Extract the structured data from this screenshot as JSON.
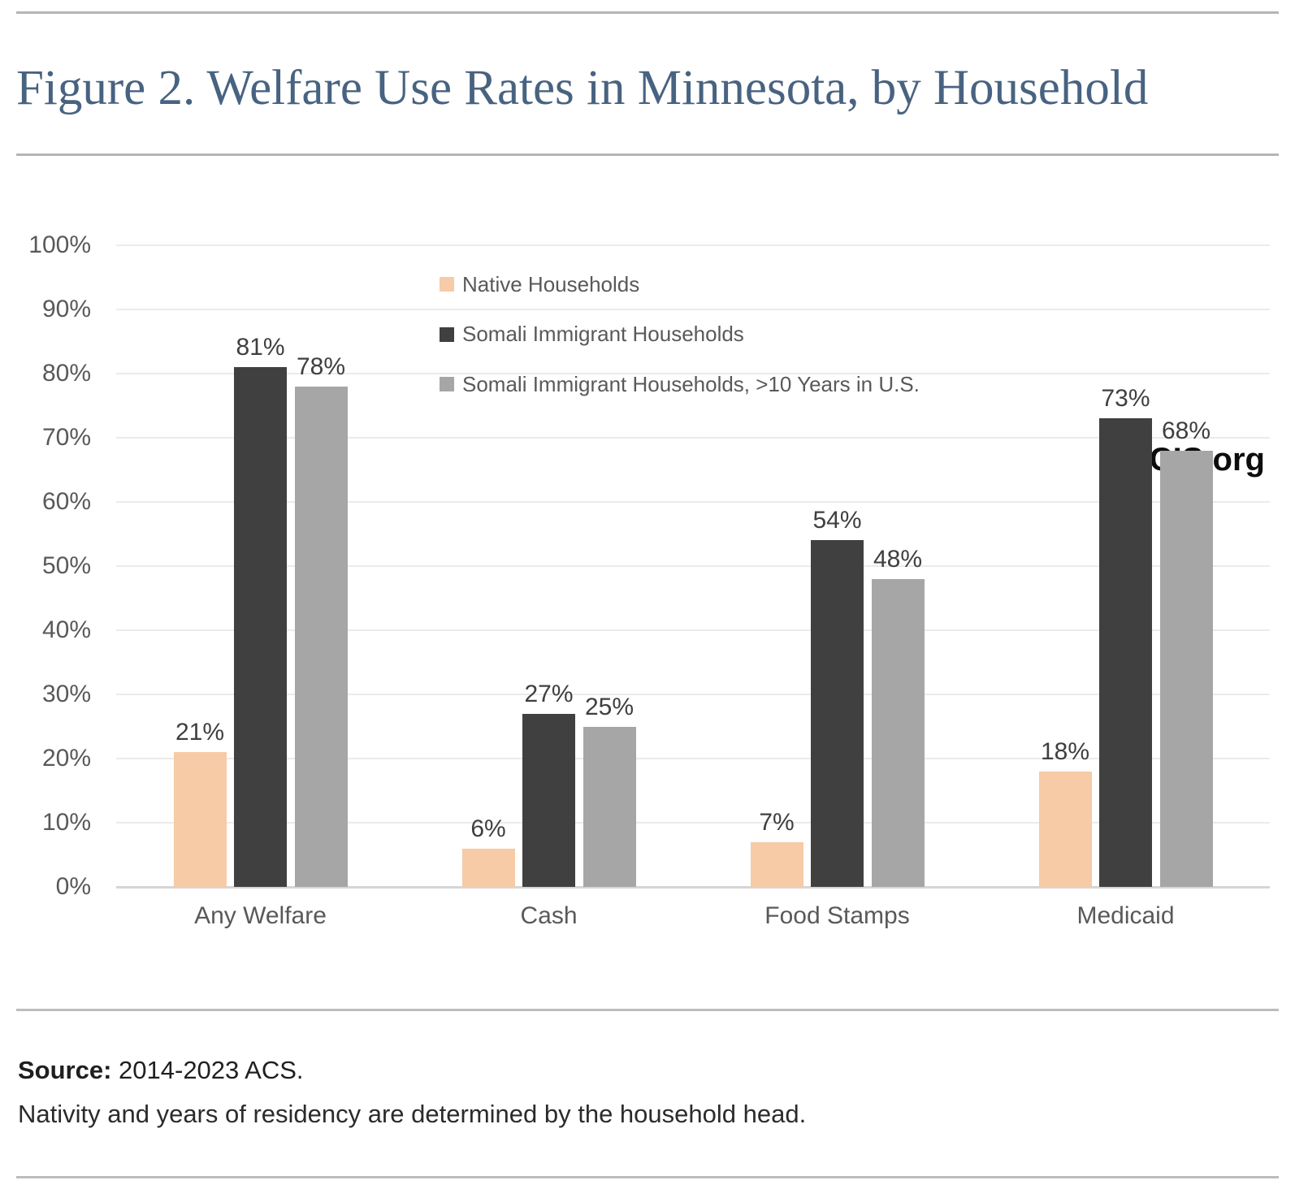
{
  "header": {
    "title": "Figure 2. Welfare Use Rates in Minnesota, by Household"
  },
  "brand": "CIS.org",
  "chart_data": {
    "type": "bar",
    "title": "Figure 2. Welfare Use Rates in Minnesota, by Household",
    "categories": [
      "Any Welfare",
      "Cash",
      "Food Stamps",
      "Medicaid"
    ],
    "series": [
      {
        "name": "Native Households",
        "color": "#f6cba6",
        "values": [
          21,
          6,
          7,
          18
        ]
      },
      {
        "name": "Somali Immigrant Households",
        "color": "#404040",
        "values": [
          81,
          27,
          54,
          73
        ]
      },
      {
        "name": "Somali Immigrant Households, >10 Years in U.S.",
        "color": "#a6a6a6",
        "values": [
          78,
          25,
          48,
          68
        ]
      }
    ],
    "xlabel": "",
    "ylabel": "",
    "ylim": [
      0,
      100
    ],
    "y_step": 10,
    "tick_suffix": "%",
    "grid": true,
    "legend_position": "top-left-inside",
    "data_labels": "outside-end",
    "colors": {
      "axis_text": "#595959",
      "data_label_text": "#3f3f3f",
      "gridline": "#ebebeb",
      "baseline": "#d6d6d6",
      "title_text": "#486381"
    }
  },
  "footer": {
    "source_label": "Source:",
    "source_text": " 2014-2023 ACS.",
    "note": "Nativity and years of residency are determined by the household head."
  }
}
